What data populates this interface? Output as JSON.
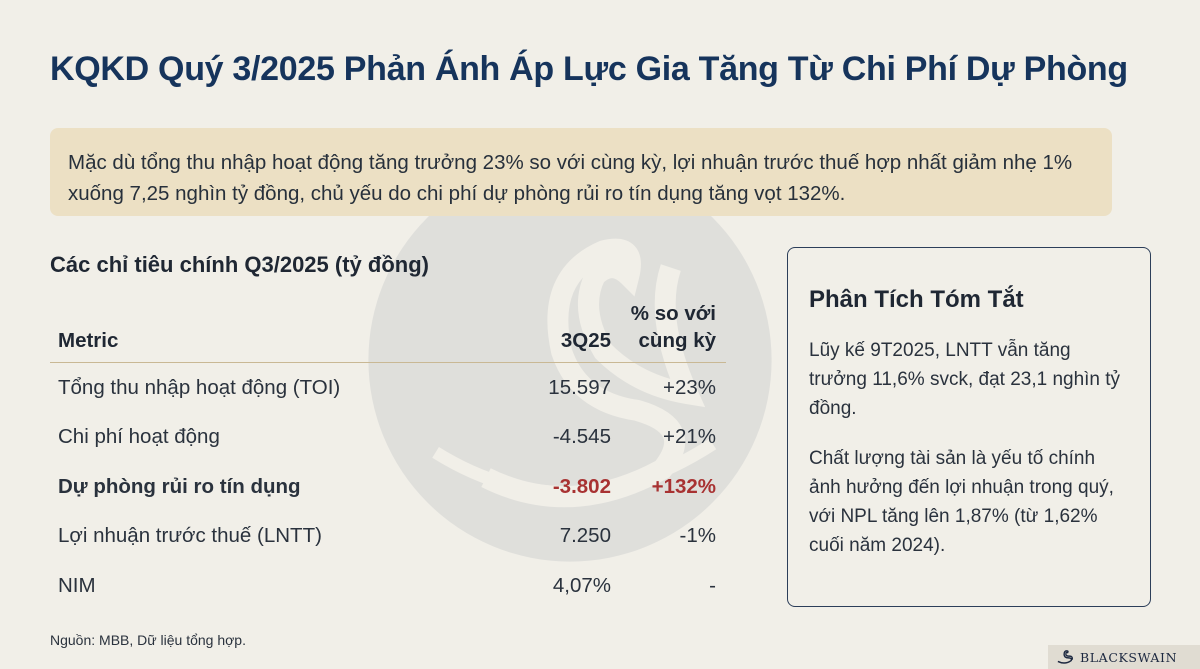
{
  "title": "KQKD Quý 3/2025 Phản Ánh Áp Lực Gia Tăng Từ Chi Phí Dự Phòng",
  "summary": "Mặc dù tổng thu nhập hoạt động tăng trưởng 23% so với cùng kỳ, lợi nhuận trước thuế hợp nhất giảm nhẹ 1% xuống 7,25 nghìn tỷ đồng, chủ yếu do chi phí dự phòng rủi ro tín dụng tăng vọt 132%.",
  "table": {
    "title": "Các chỉ tiêu chính Q3/2025 (tỷ đồng)",
    "headers": {
      "metric": "Metric",
      "value": "3Q25",
      "yoy_line1": "% so với",
      "yoy_line2": "cùng kỳ"
    },
    "rows": [
      {
        "metric": "Tổng thu nhập hoạt động (TOI)",
        "value": "15.597",
        "yoy": "+23%"
      },
      {
        "metric": "Chi phí hoạt động",
        "value": "-4.545",
        "yoy": "+21%"
      },
      {
        "metric": "Dự phòng rủi ro tín dụng",
        "value": "-3.802",
        "yoy": "+132%"
      },
      {
        "metric": "Lợi nhuận trước thuế (LNTT)",
        "value": "7.250",
        "yoy": "-1%"
      },
      {
        "metric": "NIM",
        "value": "4,07%",
        "yoy": "-"
      }
    ],
    "highlight_color": "#a83232"
  },
  "source": "Nguồn: MBB, Dữ liệu tổng hợp.",
  "analysis": {
    "title": "Phân Tích Tóm Tắt",
    "paragraph1": "Lũy kế 9T2025, LNTT vẫn tăng trưởng 11,6% svck, đạt 23,1 nghìn tỷ đồng.",
    "paragraph2": "Chất lượng tài sản là yếu tố chính ảnh hưởng đến lợi nhuận trong quý, với NPL tăng lên 1,87% (từ 1,62% cuối năm 2024)."
  },
  "logo": {
    "text": "BLACKSWAIN",
    "icon": "swan-icon"
  },
  "colors": {
    "title": "#16345c",
    "summary_bg": "#ece0c4",
    "background": "#f1efe8"
  }
}
